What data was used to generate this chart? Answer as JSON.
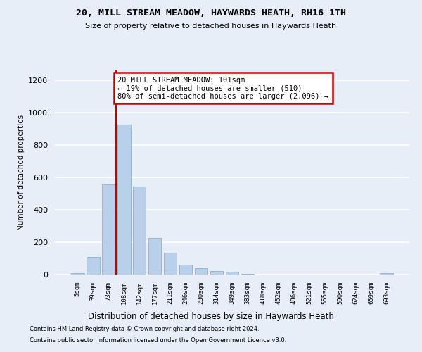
{
  "title1": "20, MILL STREAM MEADOW, HAYWARDS HEATH, RH16 1TH",
  "title2": "Size of property relative to detached houses in Haywards Heath",
  "xlabel": "Distribution of detached houses by size in Haywards Heath",
  "ylabel": "Number of detached properties",
  "categories": [
    "5sqm",
    "39sqm",
    "73sqm",
    "108sqm",
    "142sqm",
    "177sqm",
    "211sqm",
    "246sqm",
    "280sqm",
    "314sqm",
    "349sqm",
    "383sqm",
    "418sqm",
    "452sqm",
    "486sqm",
    "521sqm",
    "555sqm",
    "590sqm",
    "624sqm",
    "659sqm",
    "693sqm"
  ],
  "values": [
    8,
    110,
    555,
    925,
    545,
    225,
    135,
    62,
    38,
    22,
    18,
    5,
    0,
    0,
    0,
    0,
    0,
    0,
    0,
    0,
    8
  ],
  "bar_color": "#b8d0ea",
  "bar_edge_color": "#8ab0d0",
  "vline_x": 2.5,
  "vline_color": "#cc0000",
  "annotation_text": "20 MILL STREAM MEADOW: 101sqm\n← 19% of detached houses are smaller (510)\n80% of semi-detached houses are larger (2,096) →",
  "annotation_box_facecolor": "white",
  "annotation_box_edgecolor": "#cc0000",
  "ylim_max": 1260,
  "yticks": [
    0,
    200,
    400,
    600,
    800,
    1000,
    1200
  ],
  "footnote1": "Contains HM Land Registry data © Crown copyright and database right 2024.",
  "footnote2": "Contains public sector information licensed under the Open Government Licence v3.0.",
  "bg_color": "#e8eef8"
}
